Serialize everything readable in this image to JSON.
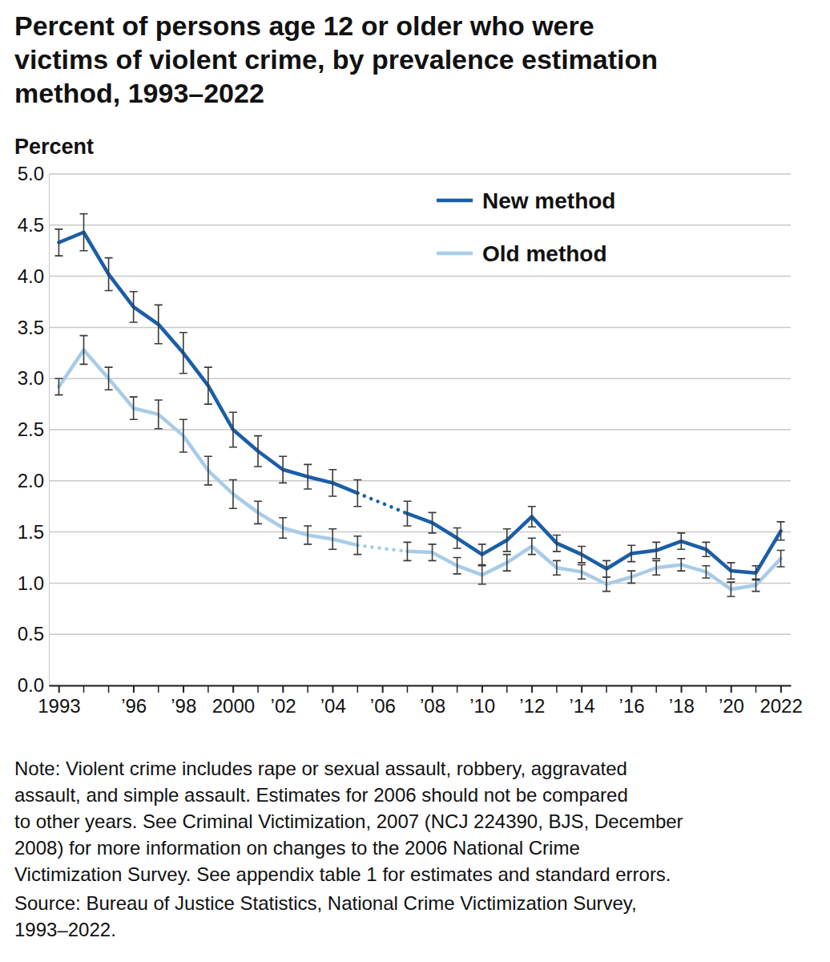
{
  "chart_data": {
    "type": "line",
    "title": "Percent of persons age 12 or older who were\nvictims of violent crime, by prevalence estimation\nmethod, 1993–2022",
    "y_label": "Percent",
    "x": [
      1993,
      1994,
      1995,
      1996,
      1997,
      1998,
      1999,
      2000,
      2001,
      2002,
      2003,
      2004,
      2005,
      2006,
      2007,
      2008,
      2009,
      2010,
      2011,
      2012,
      2013,
      2014,
      2015,
      2016,
      2017,
      2018,
      2019,
      2020,
      2021,
      2022
    ],
    "series": [
      {
        "name": "New method",
        "color": "#1a5ea8",
        "values": [
          4.33,
          4.43,
          4.02,
          3.7,
          3.53,
          3.25,
          2.93,
          2.5,
          2.29,
          2.11,
          2.04,
          1.98,
          1.88,
          null,
          1.68,
          1.59,
          1.44,
          1.28,
          1.42,
          1.65,
          1.39,
          1.28,
          1.14,
          1.29,
          1.32,
          1.41,
          1.33,
          1.12,
          1.1,
          1.51
        ],
        "errors": [
          0.13,
          0.18,
          0.16,
          0.15,
          0.19,
          0.2,
          0.18,
          0.17,
          0.15,
          0.13,
          0.12,
          0.13,
          0.13,
          null,
          0.12,
          0.1,
          0.1,
          0.1,
          0.11,
          0.1,
          0.08,
          0.08,
          0.08,
          0.08,
          0.08,
          0.08,
          0.07,
          0.08,
          0.07,
          0.09
        ]
      },
      {
        "name": "Old method",
        "color": "#a8cce8",
        "values": [
          2.92,
          3.28,
          3.0,
          2.71,
          2.65,
          2.44,
          2.1,
          1.87,
          1.69,
          1.54,
          1.47,
          1.43,
          1.37,
          null,
          1.31,
          1.3,
          1.17,
          1.08,
          1.2,
          1.36,
          1.15,
          1.11,
          0.99,
          1.06,
          1.15,
          1.18,
          1.11,
          0.94,
          0.98,
          1.24
        ],
        "errors": [
          0.08,
          0.14,
          0.11,
          0.11,
          0.14,
          0.16,
          0.14,
          0.14,
          0.11,
          0.1,
          0.09,
          0.1,
          0.09,
          null,
          0.09,
          0.08,
          0.08,
          0.09,
          0.08,
          0.08,
          0.07,
          0.07,
          0.07,
          0.06,
          0.07,
          0.06,
          0.06,
          0.07,
          0.06,
          0.08
        ]
      }
    ],
    "xlim": [
      1992.6,
      2022.4
    ],
    "xticks": [
      1993,
      {
        "value": 1996,
        "label": "’96"
      },
      {
        "value": 1998,
        "label": "’98"
      },
      2000,
      {
        "value": 2002,
        "label": "’02"
      },
      {
        "value": 2004,
        "label": "’04"
      },
      {
        "value": 2006,
        "label": "’06"
      },
      {
        "value": 2008,
        "label": "’08"
      },
      {
        "value": 2010,
        "label": "’10"
      },
      {
        "value": 2012,
        "label": "’12"
      },
      {
        "value": 2014,
        "label": "’14"
      },
      {
        "value": 2016,
        "label": "’16"
      },
      {
        "value": 2018,
        "label": "’18"
      },
      {
        "value": 2020,
        "label": "’20"
      },
      2022
    ],
    "ylim": [
      0,
      5
    ],
    "yticks": [
      {
        "value": 0,
        "label": "0.0"
      },
      {
        "value": 0.5,
        "label": "0.5"
      },
      {
        "value": 1,
        "label": "1.0"
      },
      {
        "value": 1.5,
        "label": "1.5"
      },
      {
        "value": 2,
        "label": "2.0"
      },
      {
        "value": 2.5,
        "label": "2.5"
      },
      {
        "value": 3,
        "label": "3.0"
      },
      {
        "value": 3.5,
        "label": "3.5"
      },
      {
        "value": 4,
        "label": "4.0"
      },
      {
        "value": 4.5,
        "label": "4.5"
      },
      {
        "value": 5,
        "label": "5.0"
      }
    ],
    "grid": true,
    "legend": "upper right",
    "note": "Note: Violent crime includes rape or sexual assault, robbery, aggravated\nassault, and simple assault. Estimates for 2006 should not be compared\nto other years. See Criminal Victimization, 2007 (NCJ 224390, BJS, December\n2008) for more information on changes to the 2006 National Crime\nVictimization Survey. See appendix table 1 for estimates and standard errors.",
    "source": "Source: Bureau of Justice Statistics, National Crime Victimization Survey,\n1993–2022."
  }
}
